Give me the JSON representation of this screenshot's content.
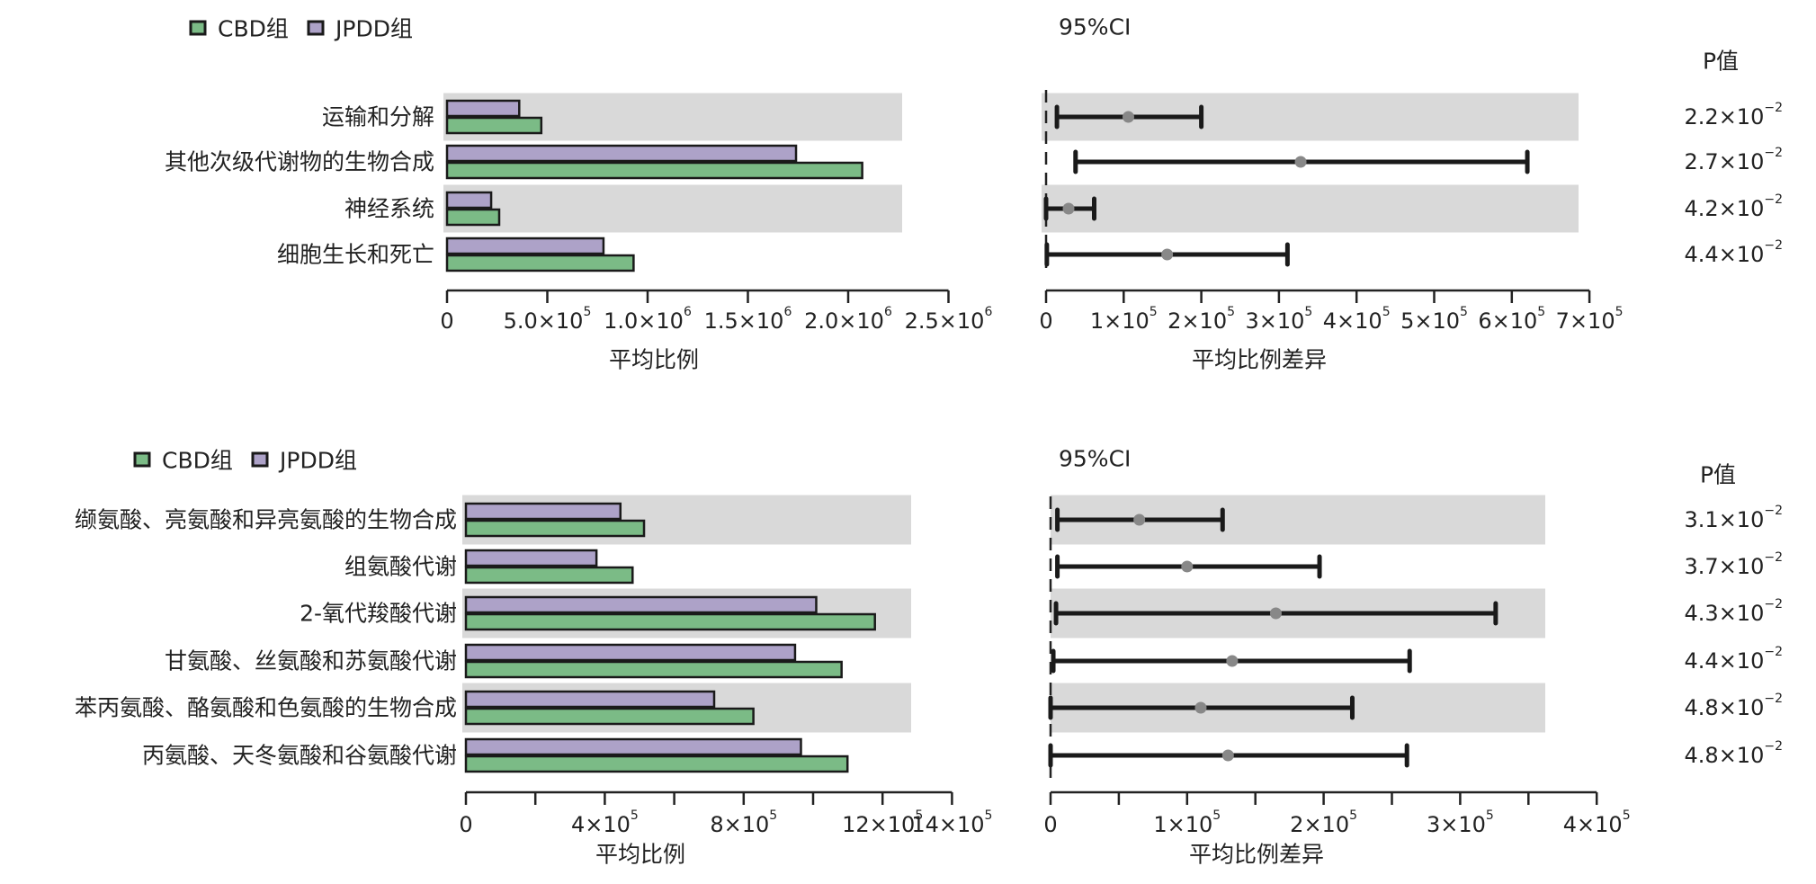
{
  "colors": {
    "cbd": "#7bbb86",
    "jpdd": "#ada2c8",
    "band": "#d9d9d9",
    "ci_line": "#1a1a1a",
    "ci_point": "#888888",
    "axis": "#222222"
  },
  "chart_data": [
    {
      "type": "bar",
      "orientation": "horizontal",
      "panel": "top-left",
      "legend": [
        "CBD组",
        "JPDD组"
      ],
      "legend_position": "top-left",
      "categories": [
        "运输和分解",
        "其他次级代谢物的生物合成",
        "神经系统",
        "细胞生长和死亡"
      ],
      "series": [
        {
          "name": "JPDD组",
          "values": [
            360000,
            1740000,
            220000,
            780000
          ]
        },
        {
          "name": "CBD组",
          "values": [
            470000,
            2070000,
            260000,
            930000
          ]
        }
      ],
      "xlabel": "平均比例",
      "xlim": [
        0,
        2500000
      ],
      "ticks": [
        0,
        500000,
        1000000,
        1500000,
        2000000,
        2500000
      ],
      "tick_labels": [
        {
          "base": "0",
          "exp": ""
        },
        {
          "base": "5.0×10",
          "exp": "5"
        },
        {
          "base": "1.0×10",
          "exp": "6"
        },
        {
          "base": "1.5×10",
          "exp": "6"
        },
        {
          "base": "2.0×10",
          "exp": "6"
        },
        {
          "base": "2.5×10",
          "exp": "6"
        }
      ],
      "band_rows": [
        0,
        2
      ]
    },
    {
      "type": "scatter",
      "subtype": "errorbar",
      "panel": "top-right",
      "title": "95%CI",
      "categories": [
        "运输和分解",
        "其他次级代谢物的生物合成",
        "神经系统",
        "细胞生长和死亡"
      ],
      "mean": [
        106000,
        328000,
        29000,
        156000
      ],
      "lower": [
        14000,
        38000,
        0,
        1000
      ],
      "upper": [
        200000,
        620000,
        62000,
        311000
      ],
      "xlabel": "平均比例差异",
      "xlim": [
        0,
        700000
      ],
      "ticks": [
        0,
        100000,
        200000,
        300000,
        400000,
        500000,
        600000,
        700000
      ],
      "tick_labels": [
        {
          "base": "0",
          "exp": ""
        },
        {
          "base": "1×10",
          "exp": "5"
        },
        {
          "base": "2×10",
          "exp": "5"
        },
        {
          "base": "3×10",
          "exp": "5"
        },
        {
          "base": "4×10",
          "exp": "5"
        },
        {
          "base": "5×10",
          "exp": "5"
        },
        {
          "base": "6×10",
          "exp": "5"
        },
        {
          "base": "7×10",
          "exp": "5"
        }
      ],
      "p_header": "P值",
      "p_values": [
        {
          "base": "2.2×10",
          "exp": "−2"
        },
        {
          "base": "2.7×10",
          "exp": "−2"
        },
        {
          "base": "4.2×10",
          "exp": "−2"
        },
        {
          "base": "4.4×10",
          "exp": "−2"
        }
      ],
      "band_rows": [
        0,
        2
      ]
    },
    {
      "type": "bar",
      "orientation": "horizontal",
      "panel": "bottom-left",
      "legend": [
        "CBD组",
        "JPDD组"
      ],
      "legend_position": "top-left",
      "categories": [
        "缬氨酸、亮氨酸和异亮氨酸的生物合成",
        "组氨酸代谢",
        "2-氧代羧酸代谢",
        "甘氨酸、丝氨酸和苏氨酸代谢",
        "苯丙氨酸、酪氨酸和色氨酸的生物合成",
        "丙氨酸、天冬氨酸和谷氨酸代谢"
      ],
      "series": [
        {
          "name": "JPDD组",
          "values": [
            445000,
            376000,
            1009000,
            948000,
            715000,
            965000
          ]
        },
        {
          "name": "CBD组",
          "values": [
            513000,
            480000,
            1178000,
            1082000,
            828000,
            1099000
          ]
        }
      ],
      "xlabel": "平均比例",
      "xlim": [
        0,
        1400000
      ],
      "ticks": [
        0,
        200000,
        400000,
        600000,
        800000,
        1000000,
        1200000,
        1400000
      ],
      "tick_labels": [
        {
          "base": "0",
          "exp": ""
        },
        {
          "base": "",
          "exp": ""
        },
        {
          "base": "4×10",
          "exp": "5"
        },
        {
          "base": "",
          "exp": ""
        },
        {
          "base": "8×10",
          "exp": "5"
        },
        {
          "base": "",
          "exp": ""
        },
        {
          "base": "12×10",
          "exp": "5"
        },
        {
          "base": "14×10",
          "exp": "5"
        }
      ],
      "band_rows": [
        0,
        2,
        4
      ]
    },
    {
      "type": "scatter",
      "subtype": "errorbar",
      "panel": "bottom-right",
      "title": "95%CI",
      "categories": [
        "缬氨酸、亮氨酸和异亮氨酸的生物合成",
        "组氨酸代谢",
        "2-氧代羧酸代谢",
        "甘氨酸、丝氨酸和苏氨酸代谢",
        "苯丙氨酸、酪氨酸和色氨酸的生物合成",
        "丙氨酸、天冬氨酸和谷氨酸代谢"
      ],
      "mean": [
        65000,
        100000,
        165000,
        133000,
        110000,
        130000
      ],
      "lower": [
        5000,
        5000,
        4000,
        2000,
        0,
        0
      ],
      "upper": [
        126000,
        197000,
        326000,
        263000,
        221000,
        261000
      ],
      "xlabel": "平均比例差异",
      "xlim": [
        0,
        400000
      ],
      "ticks": [
        0,
        50000,
        100000,
        150000,
        200000,
        250000,
        300000,
        350000,
        400000
      ],
      "tick_labels": [
        {
          "base": "0",
          "exp": ""
        },
        {
          "base": "",
          "exp": ""
        },
        {
          "base": "1×10",
          "exp": "5"
        },
        {
          "base": "",
          "exp": ""
        },
        {
          "base": "2×10",
          "exp": "5"
        },
        {
          "base": "",
          "exp": ""
        },
        {
          "base": "3×10",
          "exp": "5"
        },
        {
          "base": "",
          "exp": ""
        },
        {
          "base": "4×10",
          "exp": "5"
        }
      ],
      "p_header": "P值",
      "p_values": [
        {
          "base": "3.1×10",
          "exp": "−2"
        },
        {
          "base": "3.7×10",
          "exp": "−2"
        },
        {
          "base": "4.3×10",
          "exp": "−2"
        },
        {
          "base": "4.4×10",
          "exp": "−2"
        },
        {
          "base": "4.8×10",
          "exp": "−2"
        },
        {
          "base": "4.8×10",
          "exp": "−2"
        }
      ],
      "band_rows": [
        0,
        2,
        4
      ]
    }
  ]
}
